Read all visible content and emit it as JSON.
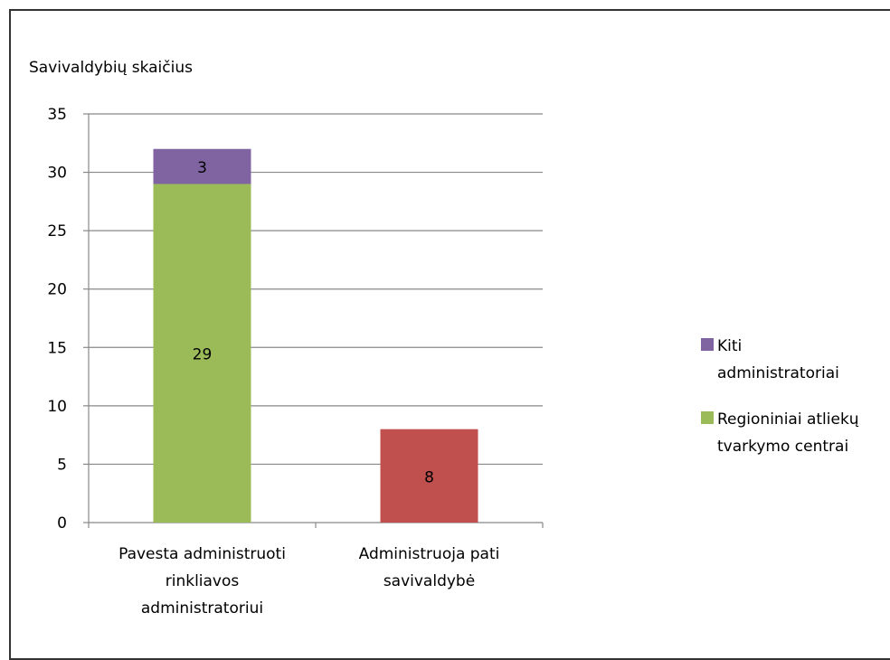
{
  "chart_data": {
    "type": "bar",
    "stacked": true,
    "ylabel": "Savivaldybių skaičius",
    "ylim": [
      0,
      35
    ],
    "yticks": [
      0,
      5,
      10,
      15,
      20,
      25,
      30,
      35
    ],
    "grid": true,
    "legend_position": "right",
    "categories": [
      [
        "Pavesta administruoti",
        "rinkliavos",
        "administratoriui"
      ],
      [
        "Administruoja pati",
        "savivaldybė"
      ]
    ],
    "bars": [
      {
        "segments": [
          {
            "value": 29,
            "label": "29",
            "color": "#9bbb59"
          },
          {
            "value": 3,
            "label": "3",
            "color": "#8064a2"
          }
        ]
      },
      {
        "segments": [
          {
            "value": 8,
            "label": "8",
            "color": "#c0504d"
          }
        ]
      }
    ],
    "legend": [
      {
        "lines": [
          "Kiti",
          "administratoriai"
        ],
        "color": "#8064a2"
      },
      {
        "lines": [
          "Regioniniai atliekų",
          "tvarkymo centrai"
        ],
        "color": "#9bbb59"
      }
    ]
  }
}
